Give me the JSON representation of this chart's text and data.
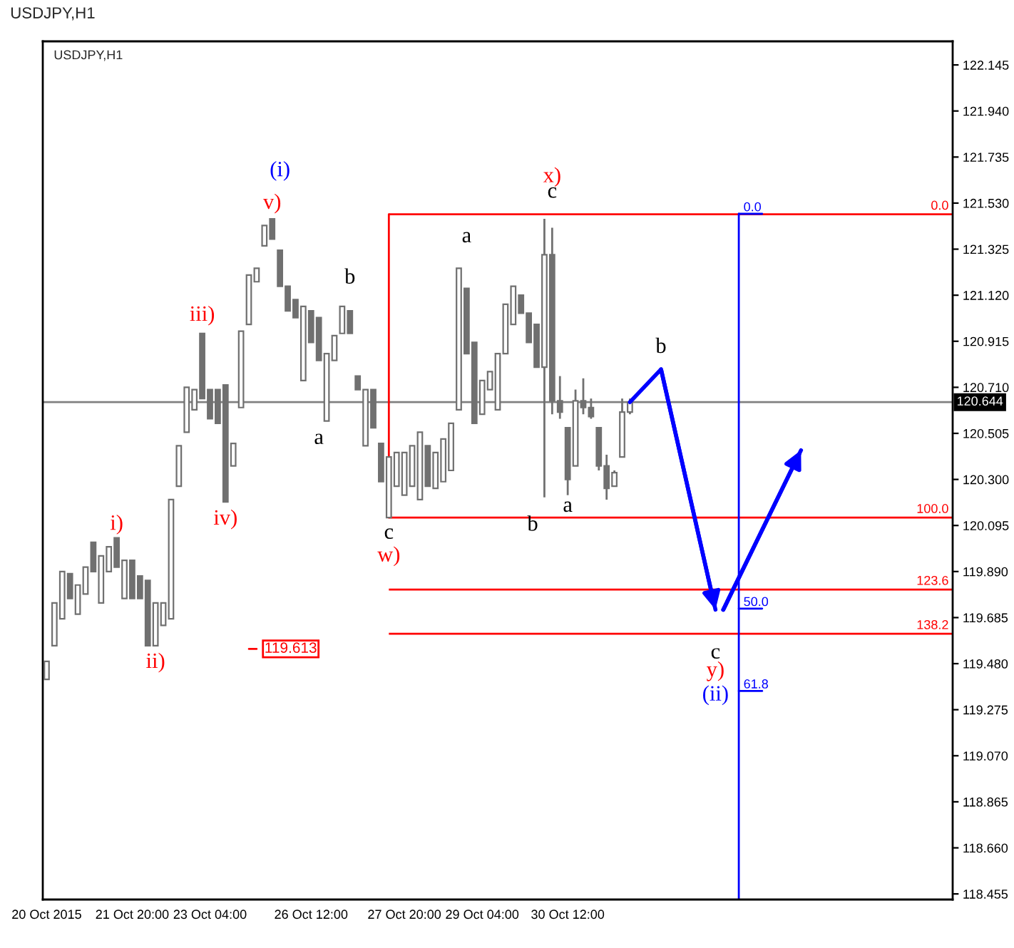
{
  "chart_data": {
    "type": "candlestick",
    "title": "USDJPY,H1",
    "subtitle": "USDJPY,H1",
    "categories": [
      "20 Oct 2015",
      null,
      null,
      null,
      null,
      null,
      null,
      null,
      null,
      null,
      null,
      "21 Oct 20:00",
      null,
      null,
      null,
      null,
      null,
      null,
      null,
      null,
      null,
      "23 Oct 04:00",
      null,
      null,
      null,
      null,
      null,
      null,
      null,
      null,
      null,
      null,
      null,
      null,
      "26 Oct 12:00",
      null,
      null,
      null,
      null,
      null,
      null,
      null,
      null,
      null,
      null,
      null,
      "27 Oct 20:00",
      null,
      null,
      null,
      null,
      null,
      null,
      null,
      null,
      null,
      "29 Oct 04:00",
      null,
      null,
      null,
      null,
      null,
      null,
      null,
      null,
      null,
      null,
      "30 Oct 12:00",
      null,
      null,
      null,
      null,
      null,
      null,
      null,
      null,
      null,
      null,
      null,
      null,
      null,
      null,
      null,
      null,
      null,
      null,
      null,
      null,
      null,
      null,
      null,
      null,
      null,
      null,
      null,
      null,
      null,
      null,
      null,
      null,
      null,
      null,
      null,
      null,
      null,
      null,
      null,
      null,
      null,
      null,
      null,
      null,
      null,
      null,
      null,
      null,
      null
    ],
    "ylim": [
      118.43,
      122.25
    ],
    "yticks": [
      122.145,
      {
        "value": 121.94,
        "label": "121.940"
      },
      121.735,
      {
        "value": 121.53,
        "label": "121.530"
      },
      121.325,
      {
        "value": 121.12,
        "label": "121.120"
      },
      120.915,
      {
        "value": 120.71,
        "label": "120.710"
      },
      120.505,
      {
        "value": 120.3,
        "label": "120.300"
      },
      120.095,
      {
        "value": 119.89,
        "label": "119.890"
      },
      119.685,
      {
        "value": 119.48,
        "label": "119.480"
      },
      119.275,
      {
        "value": 119.07,
        "label": "119.070"
      },
      118.865,
      {
        "value": 118.66,
        "label": "118.660"
      },
      118.455
    ],
    "grid": false,
    "series": [
      {
        "color": "#707070",
        "ohlc": [
          [
            119.41,
            119.49,
            119.41,
            119.49
          ],
          [
            119.56,
            119.75,
            119.56,
            119.75
          ],
          [
            119.68,
            119.89,
            119.68,
            119.89
          ],
          [
            119.88,
            119.88,
            119.77,
            119.77
          ],
          [
            119.7,
            119.83,
            119.7,
            119.83
          ],
          [
            119.79,
            119.91,
            119.79,
            119.91
          ],
          [
            120.02,
            120.02,
            119.89,
            119.89
          ],
          [
            119.75,
            119.96,
            119.75,
            119.96
          ],
          [
            119.89,
            120.0,
            119.89,
            120.0
          ],
          [
            120.04,
            120.04,
            119.91,
            119.91
          ],
          [
            119.77,
            119.94,
            119.77,
            119.94
          ],
          [
            119.94,
            119.94,
            119.77,
            119.77
          ],
          [
            119.87,
            119.87,
            119.77,
            119.77
          ],
          [
            119.85,
            119.85,
            119.56,
            119.56
          ],
          [
            119.56,
            119.75,
            119.56,
            119.75
          ],
          [
            119.65,
            119.75,
            119.65,
            119.75
          ],
          [
            119.68,
            120.21,
            119.68,
            120.21
          ],
          [
            120.27,
            120.45,
            120.27,
            120.45
          ],
          [
            120.51,
            120.71,
            120.51,
            120.71
          ],
          [
            120.61,
            120.7,
            120.61,
            120.7
          ],
          [
            120.95,
            120.95,
            120.66,
            120.66
          ],
          [
            120.7,
            120.7,
            120.57,
            120.57
          ],
          [
            120.7,
            120.7,
            120.55,
            120.55
          ],
          [
            120.72,
            120.72,
            120.2,
            120.2
          ],
          [
            120.36,
            120.46,
            120.36,
            120.46
          ],
          [
            120.62,
            120.96,
            120.62,
            120.96
          ],
          [
            120.99,
            121.21,
            120.99,
            121.21
          ],
          [
            121.18,
            121.24,
            121.18,
            121.24
          ],
          [
            121.34,
            121.43,
            121.34,
            121.43
          ],
          [
            121.46,
            121.46,
            121.37,
            121.37
          ],
          [
            121.32,
            121.32,
            121.16,
            121.16
          ],
          [
            121.16,
            121.16,
            121.05,
            121.05
          ],
          [
            121.1,
            121.1,
            121.02,
            121.02
          ],
          [
            120.74,
            121.07,
            120.74,
            121.07
          ],
          [
            121.05,
            121.05,
            120.91,
            120.91
          ],
          [
            121.02,
            121.02,
            120.83,
            120.83
          ],
          [
            120.56,
            120.86,
            120.56,
            120.86
          ],
          [
            120.83,
            120.94,
            120.83,
            120.94
          ],
          [
            120.95,
            121.07,
            120.95,
            121.07
          ],
          [
            121.05,
            121.05,
            120.95,
            120.95
          ],
          [
            120.76,
            120.76,
            120.7,
            120.7
          ],
          [
            120.45,
            120.7,
            120.45,
            120.7
          ],
          [
            120.7,
            120.7,
            120.53,
            120.53
          ],
          [
            120.46,
            120.46,
            120.29,
            120.29
          ],
          [
            120.13,
            120.4,
            120.13,
            120.4
          ],
          [
            120.27,
            120.42,
            120.27,
            120.42
          ],
          [
            120.23,
            120.42,
            120.23,
            120.42
          ],
          [
            120.27,
            120.45,
            120.27,
            120.45
          ],
          [
            120.21,
            120.51,
            120.21,
            120.51
          ],
          [
            120.45,
            120.45,
            120.27,
            120.27
          ],
          [
            120.26,
            120.42,
            120.26,
            120.42
          ],
          [
            120.29,
            120.48,
            120.29,
            120.48
          ],
          [
            120.34,
            120.55,
            120.34,
            120.55
          ],
          [
            120.61,
            121.24,
            120.61,
            121.24
          ],
          [
            121.15,
            121.15,
            120.86,
            120.86
          ],
          [
            120.91,
            120.91,
            120.55,
            120.55
          ],
          [
            120.59,
            120.74,
            120.59,
            120.74
          ],
          [
            120.7,
            120.78,
            120.7,
            120.78
          ],
          [
            120.61,
            120.86,
            120.61,
            120.86
          ],
          [
            120.86,
            121.08,
            120.86,
            121.08
          ],
          [
            120.99,
            121.16,
            120.99,
            121.16
          ],
          [
            121.12,
            121.12,
            121.04,
            121.04
          ],
          [
            121.04,
            121.04,
            120.91,
            120.91
          ],
          [
            120.99,
            120.99,
            120.8,
            120.8
          ],
          [
            120.8,
            121.46,
            120.22,
            121.3
          ],
          [
            121.3,
            121.42,
            120.59,
            120.65
          ],
          [
            120.65,
            120.76,
            120.57,
            120.6
          ],
          [
            120.53,
            120.53,
            120.23,
            120.3
          ],
          [
            120.36,
            120.7,
            120.36,
            120.65
          ],
          [
            120.65,
            120.75,
            120.59,
            120.62
          ],
          [
            120.62,
            120.66,
            120.57,
            120.58
          ],
          [
            120.53,
            120.53,
            120.34,
            120.36
          ],
          [
            120.36,
            120.41,
            120.21,
            120.26
          ],
          [
            120.27,
            120.34,
            120.27,
            120.33
          ],
          [
            120.4,
            120.66,
            120.4,
            120.6
          ],
          [
            120.6,
            120.66,
            120.59,
            120.644
          ],
          null,
          null,
          null,
          null,
          null,
          null,
          null,
          null,
          null,
          null,
          null,
          null,
          null,
          null,
          null,
          null,
          null,
          null,
          null,
          null,
          null,
          null,
          null,
          null,
          null,
          null,
          null,
          null,
          null,
          null,
          null,
          null,
          null,
          null,
          null,
          null,
          null,
          null,
          null,
          null,
          null
        ]
      },
      {
        "type": "line",
        "color": "#0000ff",
        "values": [
          null,
          null,
          null,
          null,
          null,
          null,
          null,
          null,
          null,
          null,
          null,
          null,
          null,
          null,
          null,
          null,
          null,
          null,
          null,
          null,
          null,
          null,
          null,
          null,
          null,
          null,
          null,
          null,
          null,
          null,
          null,
          null,
          null,
          null,
          null,
          null,
          null,
          null,
          null,
          null,
          null,
          null,
          null,
          null,
          null,
          null,
          null,
          null,
          null,
          null,
          null,
          null,
          null,
          null,
          null,
          null,
          null,
          null,
          null,
          null,
          null,
          null,
          null,
          null,
          null,
          null,
          null,
          null,
          null,
          null,
          null,
          null,
          null,
          null,
          null,
          120.644,
          null,
          null,
          null,
          120.79,
          null,
          null,
          null,
          null,
          null,
          null,
          119.72,
          null,
          null,
          null,
          null,
          null,
          null,
          null,
          null,
          null,
          null,
          null,
          null,
          null,
          null,
          null,
          null,
          null,
          null,
          null,
          null,
          null,
          null,
          null,
          null,
          null,
          null,
          null,
          null,
          null,
          null
        ]
      },
      {
        "type": "line",
        "color": "#0000ff",
        "values": [
          null,
          null,
          null,
          null,
          null,
          null,
          null,
          null,
          null,
          null,
          null,
          null,
          null,
          null,
          null,
          null,
          null,
          null,
          null,
          null,
          null,
          null,
          null,
          null,
          null,
          null,
          null,
          null,
          null,
          null,
          null,
          null,
          null,
          null,
          null,
          null,
          null,
          null,
          null,
          null,
          null,
          null,
          null,
          null,
          null,
          null,
          null,
          null,
          null,
          null,
          null,
          null,
          null,
          null,
          null,
          null,
          null,
          null,
          null,
          null,
          null,
          null,
          null,
          null,
          null,
          null,
          null,
          null,
          null,
          null,
          null,
          null,
          null,
          null,
          null,
          null,
          null,
          null,
          null,
          null,
          null,
          null,
          null,
          null,
          null,
          null,
          null,
          119.72,
          null,
          null,
          null,
          null,
          null,
          null,
          null,
          null,
          null,
          120.43,
          null,
          null,
          null,
          null,
          null,
          null,
          null,
          null,
          null,
          null,
          null,
          null,
          null,
          null,
          null,
          null,
          null,
          null,
          null
        ]
      }
    ],
    "ref_lines": [
      {
        "axis": "y",
        "value": 120.644,
        "label": "120.644",
        "color": "#808080"
      },
      {
        "axis": "y",
        "value": 121.48,
        "color": "#ff0000"
      },
      {
        "axis": "y",
        "value": 120.13,
        "color": "#ff0000"
      },
      {
        "axis": "y",
        "value": 119.81,
        "color": "#ff0000"
      },
      {
        "axis": "y",
        "value": 119.613,
        "color": "#ff0000"
      }
    ],
    "annotations": [
      "(i)",
      "v)",
      {
        "text": "iii)",
        "y": 120.95
      },
      "iv)",
      "i)",
      "ii)",
      "a",
      "b",
      {
        "text": "c",
        "y": 120.13
      },
      "w)",
      "a",
      "x)",
      "c",
      "b",
      "a",
      {
        "text": "b",
        "y": 120.79
      },
      "c",
      "y)",
      "(ii)",
      "119.613",
      {
        "text": "0.0",
        "y": 121.48
      },
      {
        "text": "100.0",
        "y": 120.13
      },
      {
        "text": "123.6",
        "y": 119.81
      },
      {
        "text": "138.2",
        "y": 119.613
      },
      "0.0",
      "50.0",
      "61.8"
    ]
  }
}
